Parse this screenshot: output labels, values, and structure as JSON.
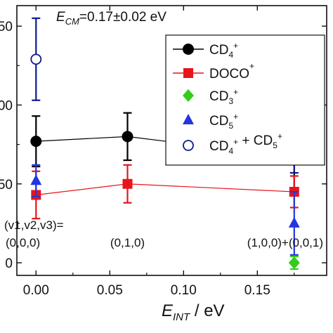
{
  "chart_data": {
    "type": "scatter",
    "title": "E_CM=0.17±0.02 eV",
    "title_parts": {
      "main": "E",
      "sub": "CM",
      "rest": "=0.17±0.02 eV"
    },
    "xlabel": "E_INT / eV",
    "xlabel_parts": {
      "main": "E",
      "sub": "INT",
      "rest": " / eV"
    },
    "ylabel": "",
    "xlim": [
      -0.013,
      0.197
    ],
    "ylim": [
      -8,
      163
    ],
    "x_ticks": [
      0.0,
      0.05,
      0.1,
      0.15
    ],
    "x_tick_labels": [
      "0.00",
      "0.05",
      "0.10",
      "0.15"
    ],
    "y_ticks": [
      0,
      50,
      100,
      150
    ],
    "y_tick_labels": [
      "0",
      "50",
      "100",
      "150"
    ],
    "grid": false,
    "legend_position": "top-right",
    "series": [
      {
        "name": "CD4+",
        "label_parts": [
          {
            "t": "CD"
          },
          {
            "t": "4",
            "sub": true
          },
          {
            "t": "+",
            "sup": true
          }
        ],
        "color": "#000000",
        "marker": "circle-filled",
        "line": true,
        "x": [
          0.0,
          0.062,
          0.175
        ],
        "y": [
          77,
          80,
          67
        ],
        "yerr": [
          16,
          15,
          22
        ]
      },
      {
        "name": "DOCO+",
        "label_parts": [
          {
            "t": "DOCO"
          },
          {
            "t": "+",
            "sup": true
          }
        ],
        "color": "#e8141c",
        "marker": "square",
        "line": true,
        "x": [
          0.0,
          0.062,
          0.175
        ],
        "y": [
          43,
          50,
          45
        ],
        "yerr": [
          15,
          12,
          10
        ]
      },
      {
        "name": "CD3+",
        "label_parts": [
          {
            "t": "CD"
          },
          {
            "t": "3",
            "sub": true
          },
          {
            "t": "+",
            "sup": true
          }
        ],
        "color": "#33cc1a",
        "marker": "diamond",
        "line": false,
        "x": [
          0.175
        ],
        "y": [
          0
        ],
        "yerr": [
          4
        ]
      },
      {
        "name": "CD5+",
        "label_parts": [
          {
            "t": "CD"
          },
          {
            "t": "5",
            "sub": true
          },
          {
            "t": "+",
            "sup": true
          }
        ],
        "color": "#2236e0",
        "marker": "triangle",
        "line": false,
        "x": [
          0.0,
          0.175
        ],
        "y": [
          52,
          25
        ],
        "yerr": [
          10,
          20
        ]
      },
      {
        "name": "CD4+ + CD5+",
        "label_parts": [
          {
            "t": "CD"
          },
          {
            "t": "4",
            "sub": true
          },
          {
            "t": "+",
            "sup": true
          },
          {
            "t": " + CD"
          },
          {
            "t": "5",
            "sub": true
          },
          {
            "t": "+",
            "sup": true
          }
        ],
        "color": "#0d1a8c",
        "marker": "circle-open",
        "line": false,
        "x": [
          0.0,
          0.175
        ],
        "y": [
          129,
          93
        ],
        "yerr": [
          26,
          36
        ]
      }
    ],
    "annotations": [
      {
        "text": "(v1,v2,v3)=",
        "x": 0.0
      },
      {
        "text": "(0,0,0)",
        "x": 0.0
      },
      {
        "text": "(0,1,0)",
        "x": 0.062
      },
      {
        "text": "(1,0,0)+(0,0,1)",
        "x": 0.175
      }
    ]
  }
}
